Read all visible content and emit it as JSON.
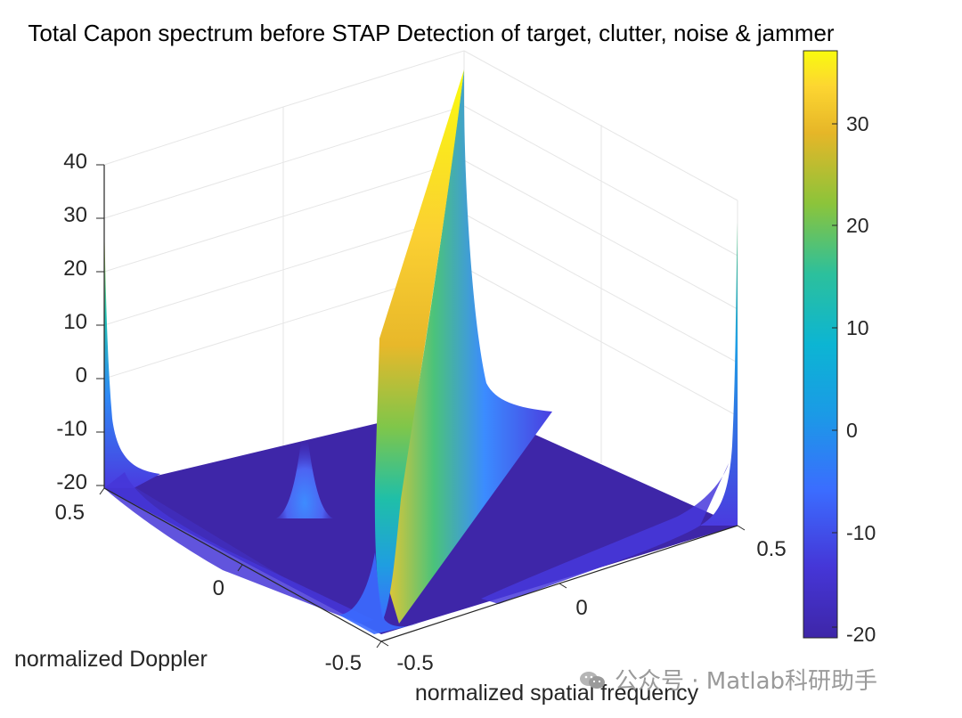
{
  "chart_data": {
    "type": "surface",
    "title": "Total Capon spectrum before STAP Detection of target, clutter, noise & jammer",
    "xlabel": "normalized spatial frequency",
    "ylabel": "normalized Doppler",
    "zlabel": "",
    "xlim": [
      -0.5,
      0.5
    ],
    "ylim": [
      -0.5,
      0.5
    ],
    "zlim": [
      -20,
      40
    ],
    "x_ticks": [
      "-0.5",
      "0",
      "0.5"
    ],
    "y_ticks": [
      "-0.5",
      "0",
      "0.5"
    ],
    "z_ticks": [
      "-20",
      "-10",
      "0",
      "10",
      "20",
      "30",
      "40"
    ],
    "colormap": "parula",
    "colorbar": {
      "range": [
        -21,
        37
      ],
      "ticks": [
        "-20",
        "-10",
        "0",
        "10",
        "20",
        "30"
      ]
    },
    "grid": true,
    "floor_level_db": -20,
    "features": [
      {
        "kind": "jammer ridge",
        "spatial_frequency": -0.2,
        "doppler_span": [
          -0.5,
          0.5
        ],
        "peak_db": 38
      },
      {
        "kind": "target peak",
        "spatial_frequency": -0.24,
        "doppler": 0.12,
        "peak_db": -7
      },
      {
        "kind": "target peak",
        "spatial_frequency": 0.25,
        "doppler": 0.3,
        "peak_db": -5
      },
      {
        "kind": "edge rise",
        "location": "spatial_frequency = -0.5, doppler = 0.5",
        "peak_db": 32
      },
      {
        "kind": "edge rise",
        "location": "spatial_frequency = 0.5, doppler = 0.5",
        "peak_db": 20
      }
    ]
  },
  "colors": {
    "parula_low": "#3e26a8",
    "parula_mid": "#12beb9",
    "parula_high": "#f9fb0e",
    "axis": "#262626",
    "grid": "#e6e6e6"
  },
  "watermark": {
    "icon": "wechat-icon",
    "text": "公众号 · Matlab科研助手"
  }
}
